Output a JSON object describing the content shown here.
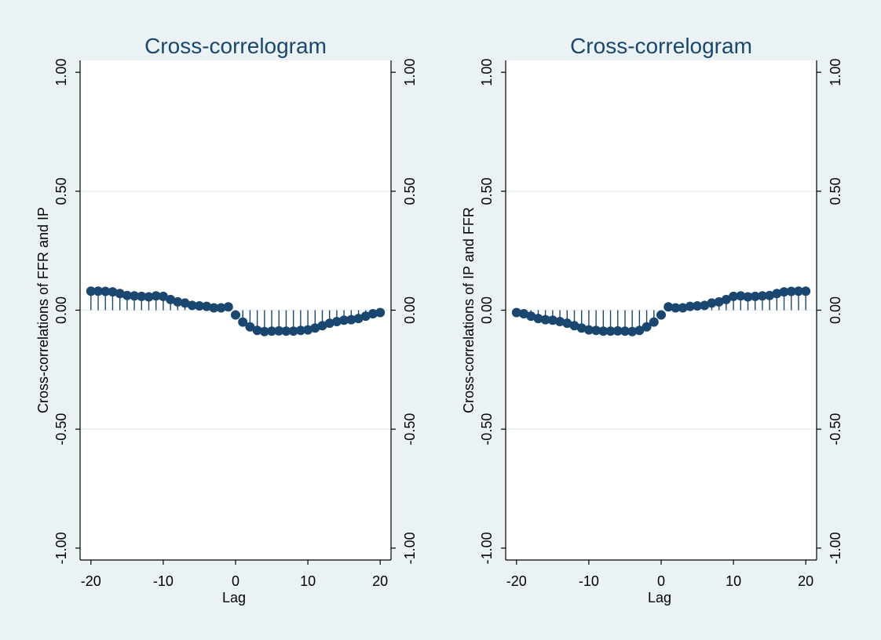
{
  "chart_data": [
    {
      "type": "scatter",
      "style": "spike",
      "title": "Cross-correlogram",
      "xlabel": "Lag",
      "ylabel": "Cross-correlations of FFR and IP",
      "xlim": [
        -21.5,
        21.5
      ],
      "ylim": [
        -1.05,
        1.05
      ],
      "x_ticks": [
        -20,
        -10,
        0,
        10,
        20
      ],
      "x_tick_labels": [
        "-20",
        "-10",
        "0",
        "10",
        "20"
      ],
      "y_ticks": [
        1.0,
        0.5,
        0.0,
        -0.5,
        -1.0
      ],
      "y_tick_labels": [
        "1.00",
        "0.50",
        "0.00",
        "-0.50",
        "-1.00"
      ],
      "right_axis": true,
      "grid": "y-major",
      "color": "#1a476f",
      "x": [
        -20,
        -19,
        -18,
        -17,
        -16,
        -15,
        -14,
        -13,
        -12,
        -11,
        -10,
        -9,
        -8,
        -7,
        -6,
        -5,
        -4,
        -3,
        -2,
        -1,
        0,
        1,
        2,
        3,
        4,
        5,
        6,
        7,
        8,
        9,
        10,
        11,
        12,
        13,
        14,
        15,
        16,
        17,
        18,
        19,
        20
      ],
      "values": [
        0.08,
        0.08,
        0.079,
        0.077,
        0.07,
        0.062,
        0.06,
        0.058,
        0.056,
        0.06,
        0.058,
        0.045,
        0.035,
        0.03,
        0.02,
        0.018,
        0.016,
        0.01,
        0.01,
        0.014,
        -0.02,
        -0.05,
        -0.07,
        -0.085,
        -0.09,
        -0.088,
        -0.087,
        -0.088,
        -0.088,
        -0.085,
        -0.083,
        -0.075,
        -0.065,
        -0.055,
        -0.048,
        -0.042,
        -0.04,
        -0.035,
        -0.025,
        -0.015,
        -0.01
      ]
    },
    {
      "type": "scatter",
      "style": "spike",
      "title": "Cross-correlogram",
      "xlabel": "Lag",
      "ylabel": "Cross-correlations of IP and FFR",
      "xlim": [
        -21.5,
        21.5
      ],
      "ylim": [
        -1.05,
        1.05
      ],
      "x_ticks": [
        -20,
        -10,
        0,
        10,
        20
      ],
      "x_tick_labels": [
        "-20",
        "-10",
        "0",
        "10",
        "20"
      ],
      "y_ticks": [
        1.0,
        0.5,
        0.0,
        -0.5,
        -1.0
      ],
      "y_tick_labels": [
        "1.00",
        "0.50",
        "0.00",
        "-0.50",
        "-1.00"
      ],
      "right_axis": true,
      "grid": "y-major",
      "color": "#1a476f",
      "x": [
        -20,
        -19,
        -18,
        -17,
        -16,
        -15,
        -14,
        -13,
        -12,
        -11,
        -10,
        -9,
        -8,
        -7,
        -6,
        -5,
        -4,
        -3,
        -2,
        -1,
        0,
        1,
        2,
        3,
        4,
        5,
        6,
        7,
        8,
        9,
        10,
        11,
        12,
        13,
        14,
        15,
        16,
        17,
        18,
        19,
        20
      ],
      "values": [
        -0.01,
        -0.015,
        -0.025,
        -0.035,
        -0.04,
        -0.042,
        -0.048,
        -0.055,
        -0.065,
        -0.075,
        -0.083,
        -0.085,
        -0.088,
        -0.088,
        -0.087,
        -0.088,
        -0.09,
        -0.085,
        -0.07,
        -0.05,
        -0.02,
        0.014,
        0.01,
        0.01,
        0.016,
        0.018,
        0.02,
        0.03,
        0.035,
        0.045,
        0.058,
        0.06,
        0.056,
        0.058,
        0.06,
        0.062,
        0.07,
        0.077,
        0.079,
        0.08,
        0.08
      ]
    }
  ]
}
